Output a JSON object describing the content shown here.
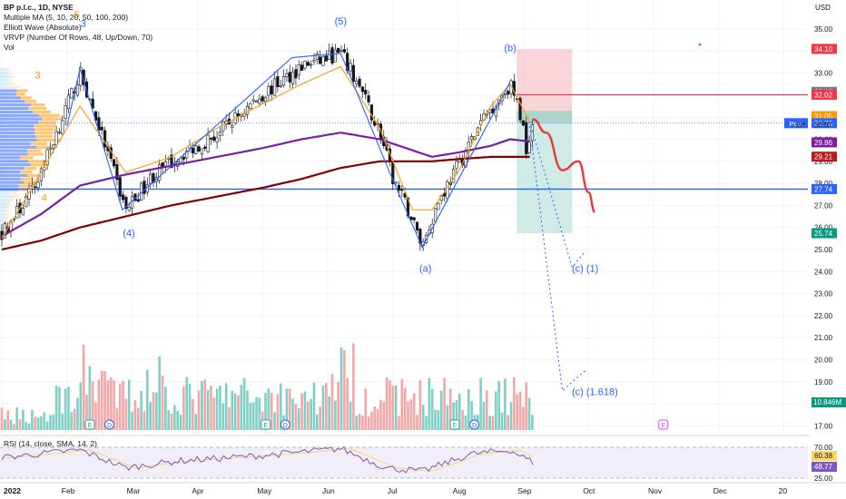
{
  "header": {
    "symbol_line": "BP p.l.c., 1D, NYSE",
    "indicators": [
      "Multiple MA (5, 10, 20, 50, 100, 200)",
      "Elliott Wave (Absolute)",
      "VRVP (Number Of Rows, 48, Up/Down, 70)",
      "Vol"
    ]
  },
  "rsi_label": "RSI (14, close, SMA, 14, 2)",
  "colors": {
    "up": "#26a69a",
    "down": "#ef5350",
    "wave": "#2962ff",
    "ma_fast": "#f7a21b",
    "ma_mid": "#7b1fa2",
    "ma_slow": "#7f0000",
    "support": "#2962ff",
    "projection": "#e53935",
    "rsi": "#7e57c2",
    "rsi_signal": "#f9d66b"
  },
  "chart_data": {
    "type": "candlestick",
    "title": "BP p.l.c., 1D, NYSE",
    "currency": "USD",
    "y_ticks": [
      "35.00",
      "34.00",
      "33.00",
      "32.00",
      "31.00",
      "30.00",
      "29.00",
      "28.00",
      "27.00",
      "26.00",
      "25.00",
      "24.00",
      "23.00",
      "22.00",
      "21.00",
      "20.00",
      "19.00",
      "18.00",
      "17.00"
    ],
    "x_ticks": [
      "2022",
      "Feb",
      "Mar",
      "Apr",
      "May",
      "Jun",
      "Jul",
      "Aug",
      "Sep",
      "Oct",
      "Nov",
      "Dec",
      "20"
    ],
    "ylim": [
      16.5,
      36.5
    ],
    "price_badges": [
      {
        "text": "34.10",
        "value": 34.1,
        "color": "#f23645"
      },
      {
        "text": "32.15",
        "value": 32.15,
        "color": "#787b86"
      },
      {
        "text": "32.02",
        "value": 32.02,
        "color": "#f23645"
      },
      {
        "text": "31.05",
        "value": 31.05,
        "color": "#ff9800"
      },
      {
        "text": "30.73",
        "value": 30.73,
        "color": "#2962ff",
        "tag": "Post"
      },
      {
        "text": "30.67",
        "value": 30.67,
        "color": "none",
        "tag": "BP"
      },
      {
        "text": "29.86",
        "value": 29.86,
        "color": "#7b1fa2"
      },
      {
        "text": "29.21",
        "value": 29.21,
        "color": "#b71c1c"
      },
      {
        "text": "27.74",
        "value": 27.74,
        "color": "#2962ff"
      },
      {
        "text": "25.74",
        "value": 25.74,
        "color": "#089981"
      }
    ],
    "volume_badge": "10.846M",
    "rsi_badges": [
      {
        "text": "60.38",
        "color": "#f9d66b"
      },
      {
        "text": "48.77",
        "color": "#7e57c2"
      }
    ],
    "rsi_ticks": [
      "70.00",
      "25.00"
    ],
    "support_level": 27.74,
    "position": {
      "entry": 30.73,
      "stop": 34.1,
      "target": 25.74,
      "start_month": 7.9,
      "end_month": 8.75
    },
    "wave_labels": [
      {
        "text": "5",
        "month": 1.15,
        "price": 35.5,
        "color": "#ff9800"
      },
      {
        "text": "3",
        "month": 1.25,
        "price": 35.1,
        "color": "#2962ff"
      },
      {
        "text": "3",
        "month": 0.55,
        "price": 32.75,
        "color": "#ff9800"
      },
      {
        "text": "4",
        "month": 0.65,
        "price": 27.2,
        "color": "#ff9800"
      },
      {
        "text": "(4)",
        "month": 1.95,
        "price": 25.6,
        "color": "#2962ff"
      },
      {
        "text": "(5)",
        "month": 5.2,
        "price": 35.2,
        "color": "#2962ff"
      },
      {
        "text": "(a)",
        "month": 6.5,
        "price": 24.0,
        "color": "#2962ff"
      },
      {
        "text": "(b)",
        "month": 7.8,
        "price": 34.0,
        "color": "#2962ff"
      },
      {
        "text": "(c) (1)",
        "month": 8.95,
        "price": 24.0,
        "color": "#2962ff"
      },
      {
        "text": "(c) (1.618)",
        "month": 9.1,
        "price": 18.4,
        "color": "#2962ff"
      }
    ],
    "elliott_wave": {
      "months": [
        1.0,
        1.2,
        1.85,
        4.45,
        5.2,
        5.95,
        6.45,
        7.8
      ],
      "prices": [
        30.6,
        33.2,
        26.8,
        33.7,
        33.9,
        28.5,
        25.1,
        32.6
      ]
    },
    "wave_dotted": {
      "months": [
        6.45,
        7.8
      ],
      "prices": [
        25.1,
        32.6
      ]
    },
    "projection_c1": {
      "months": [
        8.1,
        8.75,
        8.95
      ],
      "prices": [
        30.8,
        24.2,
        24.9
      ]
    },
    "projection_c1618": {
      "months": [
        8.1,
        8.6,
        8.95
      ],
      "prices": [
        30.6,
        18.6,
        19.5
      ]
    },
    "red_path": {
      "months": [
        8.15,
        8.35,
        8.6,
        8.85,
        9.0,
        9.1
      ],
      "prices": [
        30.9,
        30.3,
        28.6,
        29.0,
        27.6,
        26.7
      ]
    },
    "earnings_markers": [
      {
        "text": "E",
        "month": 1.35
      },
      {
        "text": "D",
        "month": 1.65
      },
      {
        "text": "E",
        "month": 4.05
      },
      {
        "text": "D",
        "month": 4.35
      },
      {
        "text": "E",
        "month": 6.95
      },
      {
        "text": "D",
        "month": 7.25
      },
      {
        "text": "E",
        "month": 10.15
      }
    ],
    "ma_keys": {
      "m": [
        0,
        0.6,
        1.2,
        1.9,
        2.6,
        3.3,
        4.0,
        4.6,
        5.2,
        5.8,
        6.3,
        6.6,
        7.0,
        7.5,
        7.8,
        8.1
      ],
      "ma20": [
        25.5,
        28.5,
        31.5,
        28.5,
        29.2,
        30.5,
        31.6,
        32.5,
        33.3,
        30.5,
        26.8,
        26.8,
        28.5,
        31.5,
        32.5,
        30.8
      ],
      "ma100": [
        25.6,
        26.6,
        27.9,
        28.4,
        28.8,
        29.2,
        29.6,
        30.0,
        30.3,
        30.0,
        29.5,
        29.2,
        29.4,
        29.7,
        30.0,
        29.9
      ],
      "ma200": [
        25.0,
        25.4,
        26.0,
        26.5,
        27.0,
        27.4,
        27.8,
        28.2,
        28.7,
        29.0,
        29.0,
        29.0,
        29.1,
        29.2,
        29.2,
        29.2
      ]
    },
    "price_keys": {
      "m": [
        0,
        0.5,
        1.2,
        1.5,
        1.9,
        2.3,
        2.8,
        3.3,
        3.9,
        4.6,
        5.2,
        5.5,
        5.8,
        6.0,
        6.25,
        6.45,
        6.7,
        7.0,
        7.4,
        7.8,
        7.95,
        8.05,
        8.15
      ],
      "p": [
        25.7,
        27.8,
        33.0,
        30.5,
        26.8,
        28.3,
        29.4,
        30.2,
        31.8,
        33.3,
        33.9,
        32.3,
        30.3,
        28.2,
        26.7,
        25.2,
        27.2,
        28.8,
        31.0,
        32.5,
        31.2,
        29.6,
        30.9
      ]
    }
  }
}
